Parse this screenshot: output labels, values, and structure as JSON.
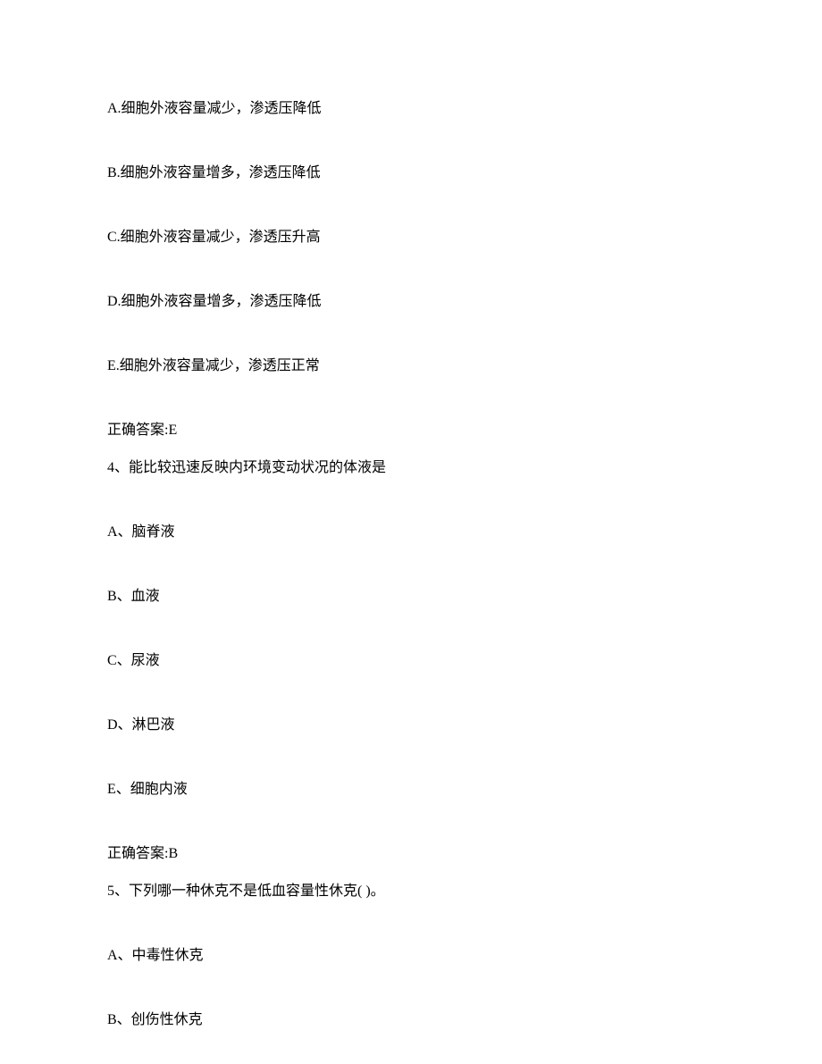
{
  "q3_options": {
    "a": "A.细胞外液容量减少，渗透压降低",
    "b": "B.细胞外液容量增多，渗透压降低",
    "c": "C.细胞外液容量减少，渗透压升高",
    "d": "D.细胞外液容量增多，渗透压降低",
    "e": "E.细胞外液容量减少，渗透压正常"
  },
  "q3_answer": "正确答案:E",
  "q4_stem": "4、能比较迅速反映内环境变动状况的体液是",
  "q4_options": {
    "a": "A、脑脊液",
    "b": "B、血液",
    "c": "C、尿液",
    "d": "D、淋巴液",
    "e": "E、细胞内液"
  },
  "q4_answer": "正确答案:B",
  "q5_stem": "5、下列哪一种休克不是低血容量性休克( )。",
  "q5_options": {
    "a": "A、中毒性休克",
    "b": "B、创伤性休克"
  }
}
